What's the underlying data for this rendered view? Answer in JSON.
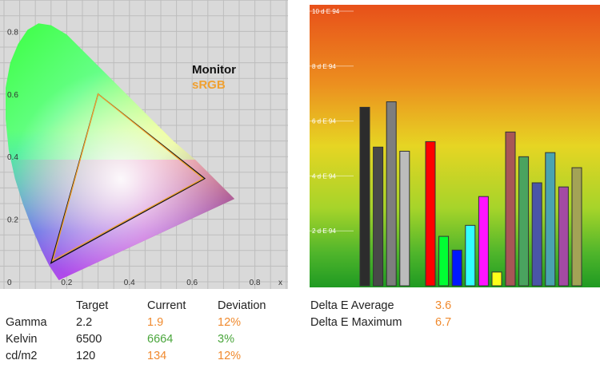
{
  "cie_chart": {
    "x_ticks": [
      "0.2",
      "0.4",
      "0.6",
      "0.8"
    ],
    "x_axis_label": "x",
    "y_ticks": [
      "0.8",
      "0.6",
      "0.4",
      "0.2"
    ],
    "y_origin_label": "0",
    "legend": [
      {
        "label": "Monitor",
        "color": "#111111"
      },
      {
        "label": "sRGB",
        "color": "#f0a030"
      }
    ]
  },
  "chart_data": [
    {
      "type": "scatter",
      "description_free": true,
      "x_range": [
        0,
        0.9
      ],
      "y_range": [
        0,
        0.9
      ],
      "series": [
        {
          "name": "Monitor",
          "points": [
            [
              0.64,
              0.33
            ],
            [
              0.3,
              0.6
            ],
            [
              0.15,
              0.06
            ]
          ]
        },
        {
          "name": "sRGB",
          "points": [
            [
              0.64,
              0.33
            ],
            [
              0.3,
              0.6
            ],
            [
              0.15,
              0.06
            ]
          ]
        }
      ]
    },
    {
      "type": "bar",
      "ylim": [
        0,
        10
      ],
      "y_tick_labels": [
        "10 d E 94",
        "8 d E 94",
        "6 d E 94",
        "4 d E 94",
        "2 d E 94"
      ],
      "y_ticks": [
        10,
        8,
        6,
        4,
        2
      ],
      "groups": [
        [
          {
            "value": 6.5,
            "color": "#2c2c2c"
          },
          {
            "value": 5.05,
            "color": "#484848"
          },
          {
            "value": 6.7,
            "color": "#7e7e7e"
          },
          {
            "value": 4.9,
            "color": "#bcbcbc"
          }
        ],
        [
          {
            "value": 5.25,
            "color": "#ff0000"
          },
          {
            "value": 1.8,
            "color": "#00ff33"
          },
          {
            "value": 1.3,
            "color": "#0018ff"
          },
          {
            "value": 2.2,
            "color": "#33ffff"
          },
          {
            "value": 3.25,
            "color": "#ff14ff"
          },
          {
            "value": 0.5,
            "color": "#ffff1a"
          }
        ],
        [
          {
            "value": 5.6,
            "color": "#a85656"
          },
          {
            "value": 4.7,
            "color": "#4aa35f"
          },
          {
            "value": 3.75,
            "color": "#4a55a8"
          },
          {
            "value": 4.85,
            "color": "#4aa3b0"
          },
          {
            "value": 3.6,
            "color": "#a34aa3"
          },
          {
            "value": 4.3,
            "color": "#a3a356"
          }
        ]
      ]
    }
  ],
  "calibration_table": {
    "headers": [
      "Target",
      "Current",
      "Deviation"
    ],
    "rows": [
      {
        "label": "Gamma",
        "target": "2.2",
        "current": "1.9",
        "current_color": "orange",
        "deviation": "12%"
      },
      {
        "label": "Kelvin",
        "target": "6500",
        "current": "6664",
        "current_color": "green",
        "deviation": "3%"
      },
      {
        "label": "cd/m2",
        "target": "120",
        "current": "134",
        "current_color": "orange",
        "deviation": "12%"
      }
    ]
  },
  "delta_e": {
    "rows": [
      {
        "label": "Delta E Average",
        "value": "3.6"
      },
      {
        "label": "Delta E Maximum",
        "value": "6.7"
      }
    ]
  }
}
